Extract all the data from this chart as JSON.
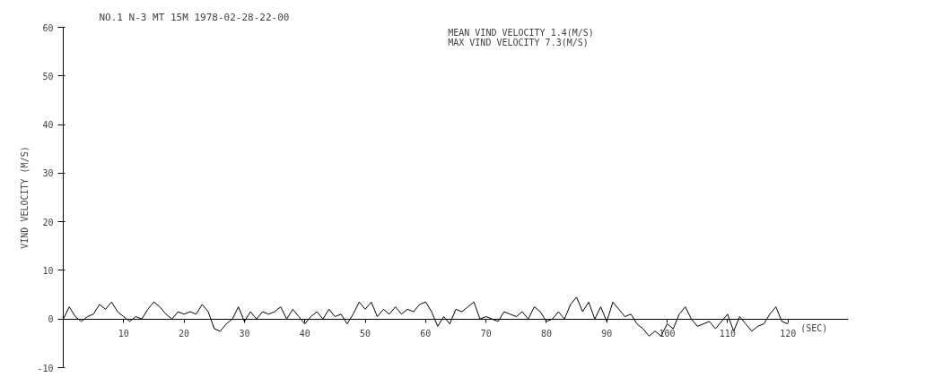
{
  "chart_data": {
    "type": "line",
    "title": "NO.1 N-3  MT   15M  1978-02-28-22-00",
    "annotations": [
      "MEAN VIND VELOCITY   1.4(M/S)",
      "MAX VIND VELOCITY    7.3(M/S)"
    ],
    "xlabel": "(SEC)",
    "ylabel": "VIND VELOCITY (M/S)",
    "x": [
      0,
      1,
      2,
      3,
      4,
      5,
      6,
      7,
      8,
      9,
      10,
      11,
      12,
      13,
      14,
      15,
      16,
      17,
      18,
      19,
      20,
      21,
      22,
      23,
      24,
      25,
      26,
      27,
      28,
      29,
      30,
      31,
      32,
      33,
      34,
      35,
      36,
      37,
      38,
      39,
      40,
      41,
      42,
      43,
      44,
      45,
      46,
      47,
      48,
      49,
      50,
      51,
      52,
      53,
      54,
      55,
      56,
      57,
      58,
      59,
      60,
      61,
      62,
      63,
      64,
      65,
      66,
      67,
      68,
      69,
      70,
      71,
      72,
      73,
      74,
      75,
      76,
      77,
      78,
      79,
      80,
      81,
      82,
      83,
      84,
      85,
      86,
      87,
      88,
      89,
      90,
      91,
      92,
      93,
      94,
      95,
      96,
      97,
      98,
      99,
      100,
      101,
      102,
      103,
      104,
      105,
      106,
      107,
      108,
      109,
      110,
      111,
      112,
      113,
      114,
      115,
      116,
      117,
      118,
      119,
      120
    ],
    "series": [
      {
        "color": "#000000",
        "values": [
          0,
          2.5,
          0.5,
          -0.5,
          0.5,
          1,
          3,
          2,
          3.5,
          1.5,
          0.5,
          -0.5,
          0.5,
          0,
          2,
          3.5,
          2.5,
          1,
          0,
          1.5,
          1,
          1.5,
          1,
          3,
          1.5,
          -2,
          -2.5,
          -1,
          0,
          2.5,
          -0.5,
          1.5,
          0,
          1.5,
          1,
          1.5,
          2.5,
          0,
          2,
          0.5,
          -1,
          0.5,
          1.5,
          0,
          2,
          0.5,
          1,
          -1,
          1,
          3.5,
          2,
          3.5,
          0.5,
          2,
          1,
          2.5,
          1,
          2,
          1.5,
          3,
          3.5,
          1.5,
          -1.5,
          0.5,
          -1,
          2,
          1.5,
          2.5,
          3.5,
          0,
          0.5,
          0,
          -0.5,
          1.5,
          1,
          0.5,
          1.5,
          0,
          2.5,
          1.5,
          -0.5,
          0,
          1.5,
          0,
          3,
          4.5,
          1.5,
          3.5,
          0,
          2.5,
          -0.5,
          3.5,
          2,
          0.5,
          1,
          -1,
          -2,
          -3.5,
          -2.5,
          -3.5,
          -1,
          -2,
          1,
          2.5,
          0,
          -1.5,
          -1,
          -0.5,
          -2,
          -0.5,
          1,
          -2.5,
          0.5,
          -1,
          -2.5,
          -1.5,
          -1,
          1,
          2.5,
          -0.5,
          -1
        ]
      }
    ],
    "xlim": [
      0,
      130
    ],
    "ylim": [
      -10,
      60
    ],
    "xticks": [
      10,
      20,
      30,
      40,
      50,
      60,
      70,
      80,
      90,
      100,
      110,
      120
    ],
    "yticks": [
      -10,
      0,
      10,
      20,
      30,
      40,
      50,
      60
    ],
    "grid": false,
    "marker": "none",
    "line_style": "solid"
  }
}
